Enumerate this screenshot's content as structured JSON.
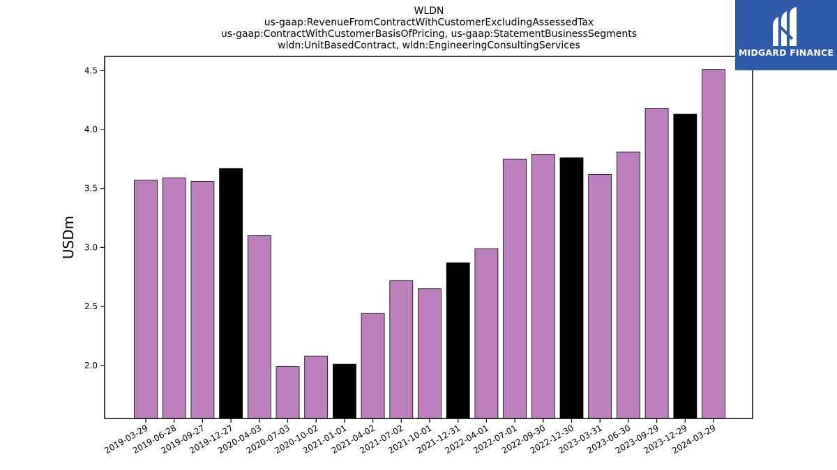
{
  "colors": {
    "bar_default": "#bc80bd",
    "bar_highlight": "#000000",
    "logo_background": "#2f5aa8"
  },
  "logo": {
    "text": "MIDGARD FINANCE",
    "icon": "midgard-m-logo-icon"
  },
  "chart_data": {
    "type": "bar",
    "title": [
      "WLDN",
      "us-gaap:RevenueFromContractWithCustomerExcludingAssessedTax",
      "us-gaap:ContractWithCustomerBasisOfPricing, us-gaap:StatementBusinessSegments",
      "wldn:UnitBasedContract, wldn:EngineeringConsultingServices"
    ],
    "xlabel": "",
    "ylabel": "USDm",
    "ylim": [
      1.55,
      4.62
    ],
    "yticks": [
      "2.0",
      "2.5",
      "3.0",
      "3.5",
      "4.0",
      "4.5"
    ],
    "grid": false,
    "categories": [
      "2019-03-29",
      "2019-06-28",
      "2019-09-27",
      "2019-12-27",
      "2020-04-03",
      "2020-07-03",
      "2020-10-02",
      "2021-01-01",
      "2021-04-02",
      "2021-07-02",
      "2021-10-01",
      "2021-12-31",
      "2022-04-01",
      "2022-07-01",
      "2022-09-30",
      "2022-12-30",
      "2023-03-31",
      "2023-06-30",
      "2023-09-29",
      "2023-12-29",
      "2024-03-29"
    ],
    "values": [
      3.57,
      3.59,
      3.56,
      3.67,
      3.1,
      1.99,
      2.08,
      2.01,
      2.44,
      2.72,
      2.65,
      2.87,
      2.99,
      3.75,
      3.79,
      3.76,
      3.62,
      3.81,
      4.18,
      4.13,
      4.51
    ],
    "highlighted": [
      false,
      false,
      false,
      true,
      false,
      false,
      false,
      true,
      false,
      false,
      false,
      true,
      false,
      false,
      false,
      true,
      false,
      false,
      false,
      true,
      false
    ]
  }
}
